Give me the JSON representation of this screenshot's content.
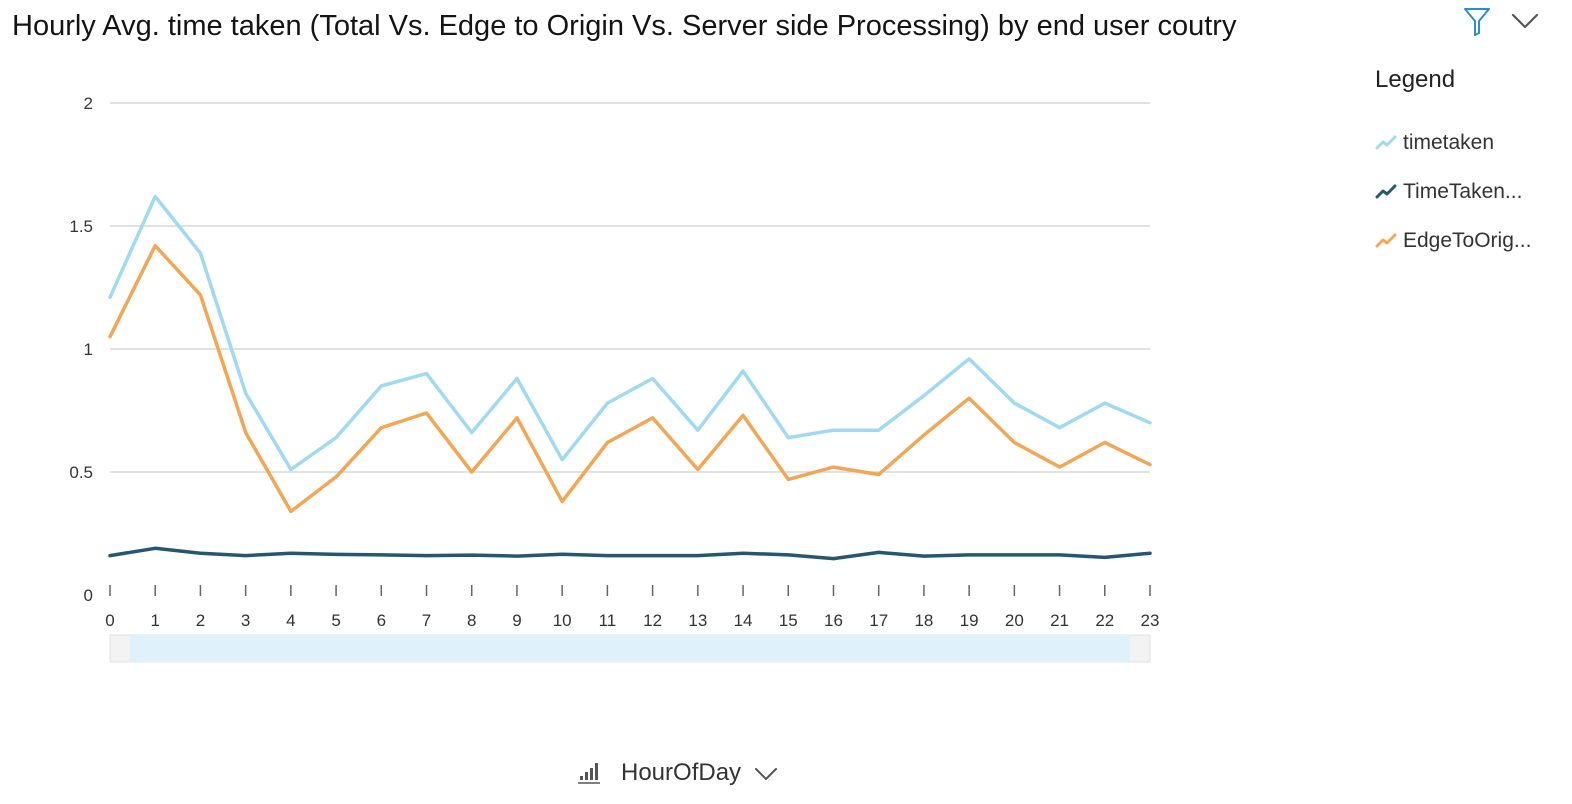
{
  "title": "Hourly Avg. time taken (Total Vs. Edge to Origin Vs. Server side Processing) by end user coutry",
  "header": {
    "filter_icon": "filter-icon",
    "menu_icon": "chevron-down-icon"
  },
  "legend": {
    "title": "Legend",
    "items": [
      {
        "label": "timetaken",
        "color": "#9fdaf0"
      },
      {
        "label": "TimeTaken...",
        "color": "#27566f"
      },
      {
        "label": "EdgeToOrig...",
        "color": "#f3a654"
      }
    ]
  },
  "x_axis": {
    "field_label": "HourOfDay",
    "field_icon": "sort-bars-icon",
    "dropdown_icon": "chevron-down-icon"
  },
  "chart_data": {
    "type": "line",
    "title": "Hourly Avg. time taken (Total Vs. Edge to Origin Vs. Server side Processing) by end user coutry",
    "xlabel": "HourOfDay",
    "ylabel": "",
    "x": [
      "0",
      "1",
      "2",
      "3",
      "4",
      "5",
      "6",
      "7",
      "8",
      "9",
      "10",
      "11",
      "12",
      "13",
      "14",
      "15",
      "16",
      "17",
      "18",
      "19",
      "20",
      "21",
      "22",
      "23"
    ],
    "y_ticks": [
      "0",
      "0.5",
      "1",
      "1.5",
      "2"
    ],
    "ylim": [
      0,
      2
    ],
    "grid": true,
    "legend_position": "right",
    "series": [
      {
        "name": "timetaken",
        "color": "#9fdaf0",
        "values": [
          1.21,
          1.62,
          1.39,
          0.82,
          0.51,
          0.64,
          0.85,
          0.9,
          0.66,
          0.88,
          0.55,
          0.78,
          0.88,
          0.67,
          0.91,
          0.64,
          0.67,
          0.67,
          0.81,
          0.96,
          0.78,
          0.68,
          0.78,
          0.7
        ]
      },
      {
        "name": "TimeTaken...",
        "color": "#27566f",
        "values": [
          0.16,
          0.19,
          0.17,
          0.16,
          0.17,
          0.165,
          0.163,
          0.16,
          0.162,
          0.158,
          0.166,
          0.16,
          0.16,
          0.16,
          0.17,
          0.163,
          0.148,
          0.173,
          0.158,
          0.163,
          0.163,
          0.163,
          0.153,
          0.17
        ]
      },
      {
        "name": "EdgeToOrig...",
        "color": "#f3a654",
        "values": [
          1.05,
          1.42,
          1.22,
          0.66,
          0.34,
          0.48,
          0.68,
          0.74,
          0.5,
          0.72,
          0.38,
          0.62,
          0.72,
          0.51,
          0.73,
          0.47,
          0.52,
          0.49,
          0.65,
          0.8,
          0.62,
          0.52,
          0.62,
          0.53
        ]
      }
    ]
  }
}
